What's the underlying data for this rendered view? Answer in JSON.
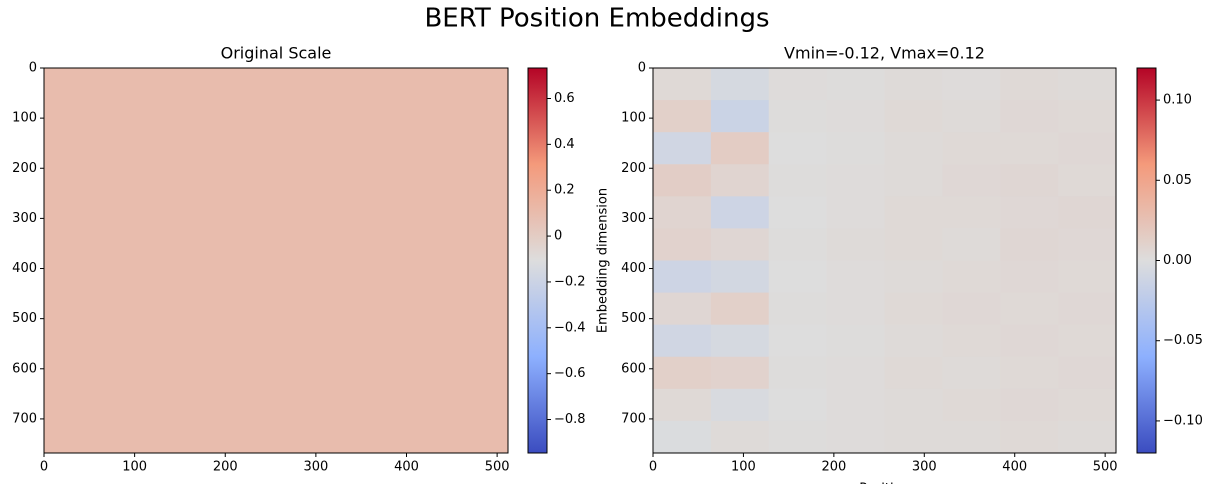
{
  "title": "BERT Position Embeddings",
  "chart_data": [
    {
      "type": "heatmap",
      "title": "Original Scale",
      "xlim": [
        0,
        512
      ],
      "ylim": [
        768,
        0
      ],
      "xticks": [
        0,
        100,
        200,
        300,
        400,
        500
      ],
      "yticks": [
        0,
        100,
        200,
        300,
        400,
        500,
        600,
        700
      ],
      "colormap": "coolwarm",
      "clim": [
        -0.946,
        0.733
      ],
      "cticks": [
        {
          "value": -0.8,
          "label": "−0.8"
        },
        {
          "value": -0.6,
          "label": "−0.6"
        },
        {
          "value": -0.4,
          "label": "−0.4"
        },
        {
          "value": -0.2,
          "label": "−0.2"
        },
        0.0,
        0.2,
        0.4,
        0.6
      ],
      "values": [
        [
          0.1
        ]
      ]
    },
    {
      "type": "heatmap",
      "title": "Vmin=-0.12, Vmax=0.12",
      "xlabel": "Position",
      "ylabel": "Embedding dimension",
      "xlim": [
        0,
        512
      ],
      "ylim": [
        768,
        0
      ],
      "xticks": [
        0,
        100,
        200,
        300,
        400,
        500
      ],
      "yticks": [
        0,
        100,
        200,
        300,
        400,
        500,
        600,
        700
      ],
      "colormap": "coolwarm",
      "clim": [
        -0.12,
        0.12
      ],
      "cticks": [
        {
          "value": -0.1,
          "label": "−0.10"
        },
        {
          "value": -0.05,
          "label": "−0.05"
        },
        {
          "value": 0.0,
          "label": "0.00"
        },
        0.05,
        {
          "value": 0.1,
          "label": "0.10"
        }
      ],
      "values": [
        [
          0.004,
          -0.006,
          0.002,
          0.001,
          0.003,
          0.002,
          0.004,
          0.003
        ],
        [
          0.012,
          -0.014,
          0.001,
          0.002,
          0.004,
          0.003,
          0.005,
          0.004
        ],
        [
          -0.01,
          0.015,
          0.0,
          0.001,
          0.003,
          0.004,
          0.004,
          0.005
        ],
        [
          0.014,
          0.008,
          0.001,
          0.002,
          0.003,
          0.005,
          0.006,
          0.004
        ],
        [
          0.008,
          -0.012,
          0.0,
          0.002,
          0.004,
          0.004,
          0.005,
          0.006
        ],
        [
          0.01,
          0.006,
          0.001,
          0.003,
          0.004,
          0.003,
          0.006,
          0.005
        ],
        [
          -0.012,
          -0.008,
          0.0,
          0.002,
          0.003,
          0.004,
          0.005,
          0.004
        ],
        [
          0.006,
          0.012,
          0.001,
          0.002,
          0.004,
          0.005,
          0.004,
          0.005
        ],
        [
          -0.01,
          -0.006,
          0.0,
          0.001,
          0.003,
          0.004,
          0.005,
          0.004
        ],
        [
          0.012,
          0.01,
          0.001,
          0.002,
          0.004,
          0.003,
          0.004,
          0.005
        ],
        [
          0.004,
          -0.004,
          0.0,
          0.002,
          0.003,
          0.004,
          0.005,
          0.004
        ],
        [
          -0.002,
          0.003,
          0.001,
          0.002,
          0.003,
          0.003,
          0.004,
          0.003
        ]
      ]
    }
  ]
}
